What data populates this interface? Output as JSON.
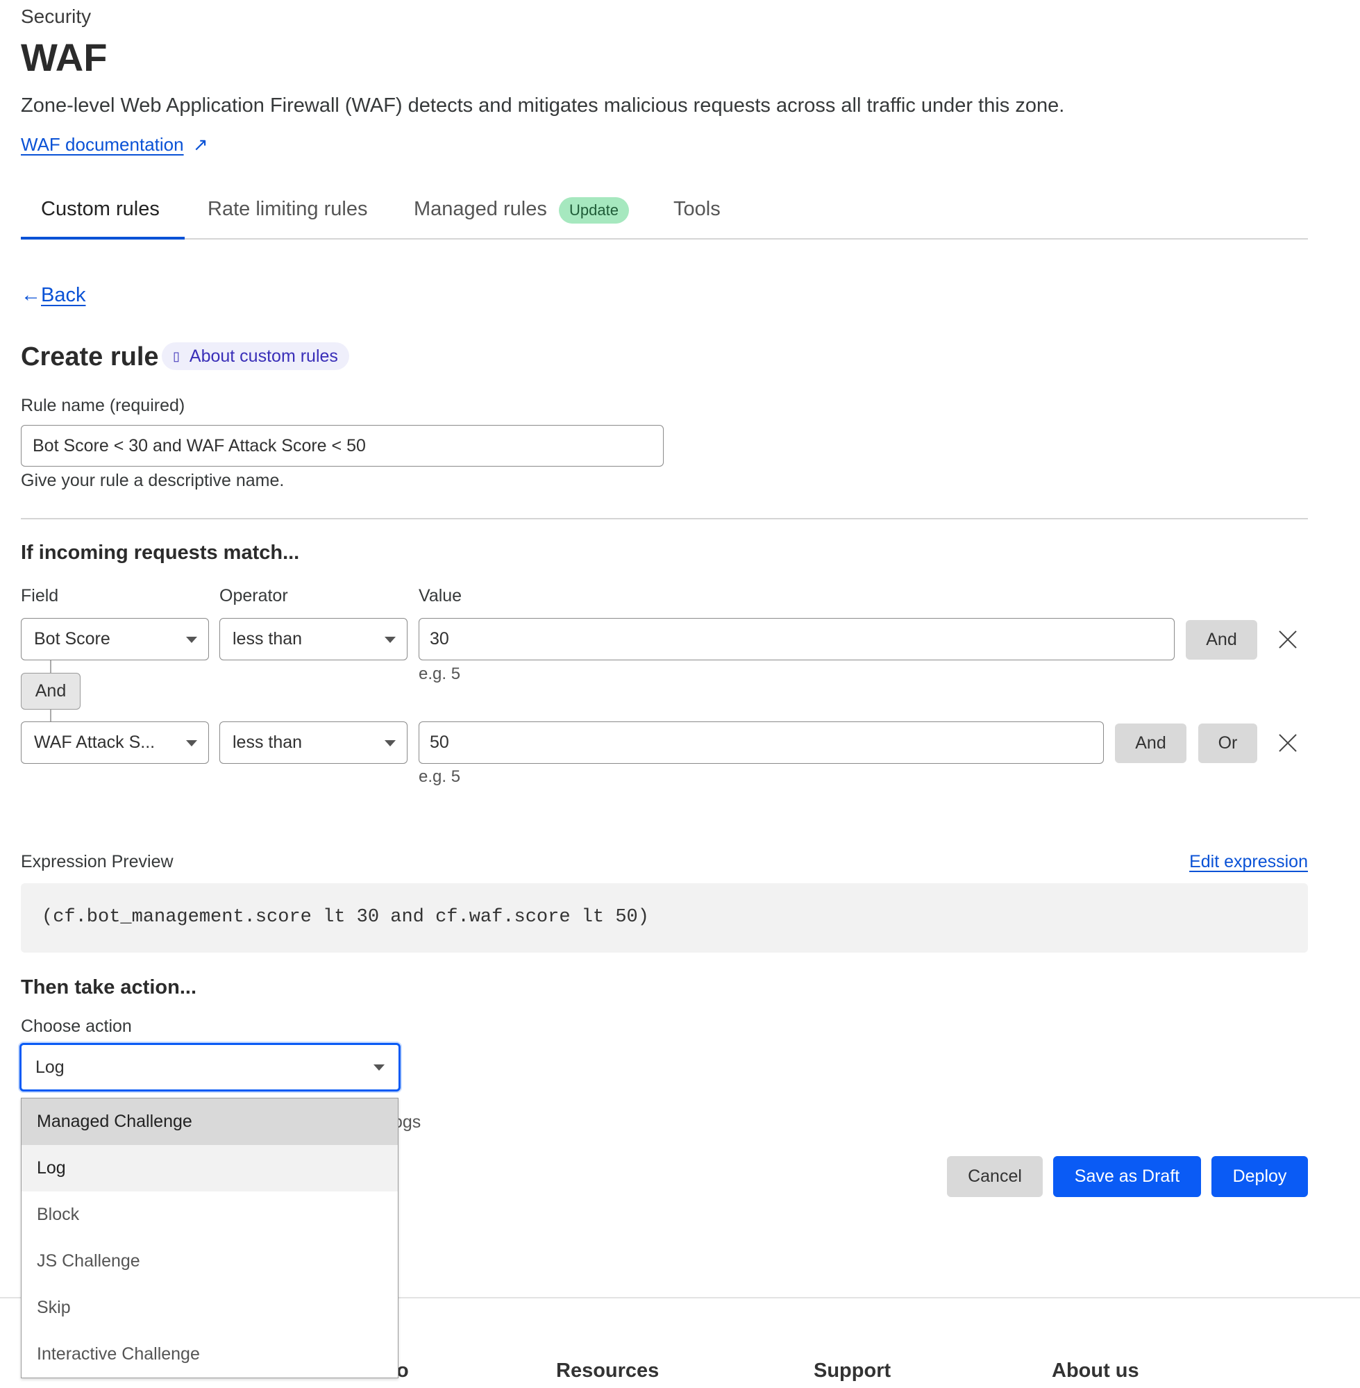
{
  "header": {
    "section": "Security",
    "title": "WAF",
    "description": "Zone-level Web Application Firewall (WAF) detects and mitigates malicious requests across all traffic under this zone.",
    "doc_link": "WAF documentation"
  },
  "tabs": [
    {
      "label": "Custom rules",
      "active": true
    },
    {
      "label": "Rate limiting rules"
    },
    {
      "label": "Managed rules",
      "badge": "Update"
    },
    {
      "label": "Tools"
    }
  ],
  "back": "Back",
  "create": {
    "title": "Create rule",
    "about": "About custom rules"
  },
  "rule_name": {
    "label": "Rule name (required)",
    "value": "Bot Score < 30 and WAF Attack Score < 50",
    "help": "Give your rule a descriptive name."
  },
  "match": {
    "heading": "If incoming requests match...",
    "field_label": "Field",
    "operator_label": "Operator",
    "value_label": "Value",
    "rows": [
      {
        "field": "Bot Score",
        "operator": "less than",
        "value": "30",
        "hint": "e.g. 5",
        "and": "And"
      },
      {
        "field": "WAF Attack S...",
        "operator": "less than",
        "value": "50",
        "hint": "e.g. 5",
        "and": "And",
        "or": "Or"
      }
    ],
    "connector": "And"
  },
  "expression": {
    "label": "Expression Preview",
    "edit": "Edit expression",
    "code": "(cf.bot_management.score lt 30 and cf.waf.score lt 50)"
  },
  "action": {
    "heading": "Then take action...",
    "label": "Choose action",
    "selected": "Log",
    "behind_text": "ogs",
    "options": [
      "Managed Challenge",
      "Log",
      "Block",
      "JS Challenge",
      "Skip",
      "Interactive Challenge"
    ]
  },
  "buttons": {
    "cancel": "Cancel",
    "draft": "Save as Draft",
    "deploy": "Deploy"
  },
  "footer": [
    "o",
    "Resources",
    "Support",
    "About us"
  ],
  "colors": {
    "accent": "#0a5bf5",
    "badge": "#a6e8bf",
    "link": "#0a52d6"
  }
}
